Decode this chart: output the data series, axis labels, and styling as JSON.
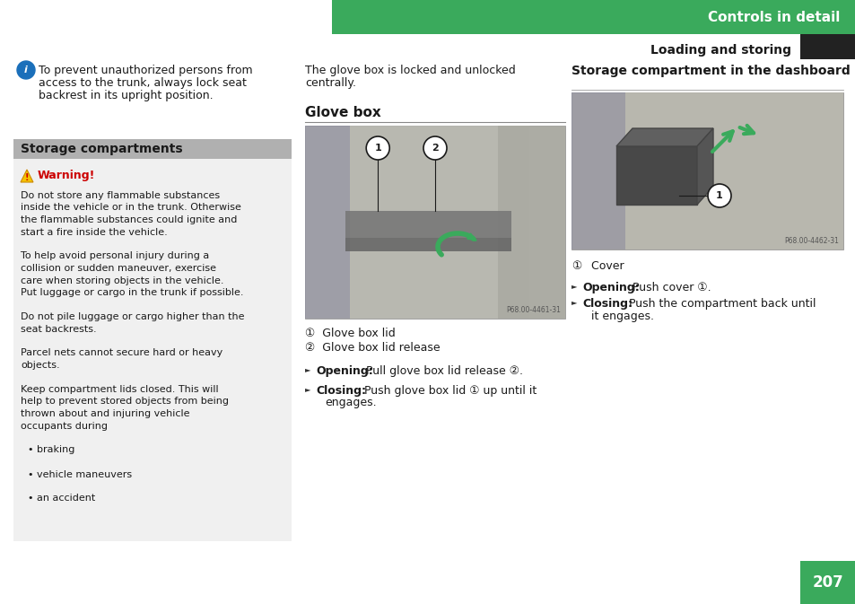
{
  "page_bg": "#ffffff",
  "header_bg": "#3aaa5c",
  "header_text": "Controls in detail",
  "header_text_color": "#ffffff",
  "subheader_text": "Loading and storing",
  "black_tab_color": "#222222",
  "page_number": "207",
  "page_number_bg": "#3aaa5c",
  "page_number_color": "#ffffff",
  "info_text_line1": "To prevent unauthorized persons from",
  "info_text_line2": "access to the trunk, always lock seat",
  "info_text_line3": "backrest in its upright position.",
  "storage_compartments_header": "Storage compartments",
  "storage_header_bg": "#b0b0b0",
  "left_col_bg": "#f0f0f0",
  "warning_color": "#cc0000",
  "warning_title": "Warning!",
  "mid_intro_line1": "The glove box is locked and unlocked",
  "mid_intro_line2": "centrally.",
  "glove_box_title": "Glove box",
  "glove_label1": "P68.00-4461-31",
  "glove_cap1": "①  Glove box lid",
  "glove_cap2": "②  Glove box lid release",
  "glove_opening_bold": "Opening:",
  "glove_opening_rest": " Pull glove box lid release ②.",
  "glove_closing_bold": "Closing:",
  "glove_closing_rest_1": " Push glove box lid ① up until it",
  "glove_closing_rest_2": "engages.",
  "right_title": "Storage compartment in the dashboard",
  "dash_label": "P68.00-4462-31",
  "right_cap1_num": "①",
  "right_cap1_text": "  Cover",
  "right_opening_bold": "Opening:",
  "right_opening_rest": " Push cover ①.",
  "right_closing_bold": "Closing:",
  "right_closing_rest_1": " Push the compartment back until",
  "right_closing_rest_2": "it engages.",
  "img_bg_glove": "#c8c8c0",
  "img_bg_dash": "#c8c5b8",
  "green_color": "#3aaa5c",
  "font_size_body": 9,
  "font_size_small": 8,
  "font_size_header": 10,
  "font_size_page_num": 12,
  "warning_lines": [
    "Do not store any flammable substances",
    "inside the vehicle or in the trunk. Otherwise",
    "the flammable substances could ignite and",
    "start a fire inside the vehicle.",
    "",
    "To help avoid personal injury during a",
    "collision or sudden maneuver, exercise",
    "care when storing objects in the vehicle.",
    "Put luggage or cargo in the trunk if possible.",
    "",
    "Do not pile luggage or cargo higher than the",
    "seat backrests.",
    "",
    "Parcel nets cannot secure hard or heavy",
    "objects.",
    "",
    "Keep compartment lids closed. This will",
    "help to prevent stored objects from being",
    "thrown about and injuring vehicle",
    "occupants during",
    "",
    "• braking",
    "",
    "• vehicle maneuvers",
    "",
    "• an accident"
  ]
}
